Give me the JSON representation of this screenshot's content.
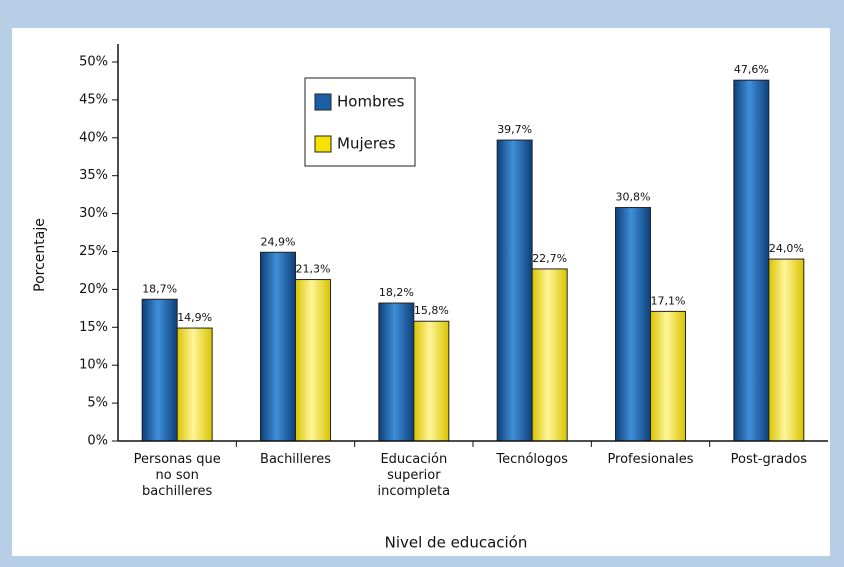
{
  "chart_data": {
    "type": "bar",
    "xlabel": "Nivel de educación",
    "ylabel": "Porcentaje",
    "categories": [
      "Personas que\nno son\nbachilleres",
      "Bachilleres",
      "Educación\nsuperior\nincompleta",
      "Tecnólogos",
      "Profesionales",
      "Post-grados"
    ],
    "series": [
      {
        "name": "Hombres",
        "color": "#1a5ea8",
        "values": [
          18.7,
          24.9,
          18.2,
          39.7,
          30.8,
          47.6
        ],
        "value_labels": [
          "18,7%",
          "24,9%",
          "18,2%",
          "39,7%",
          "30,8%",
          "47,6%"
        ]
      },
      {
        "name": "Mujeres",
        "color": "#f4e200",
        "values": [
          14.9,
          21.3,
          15.8,
          22.7,
          17.1,
          24.0
        ],
        "value_labels": [
          "14,9%",
          "21,3%",
          "15,8%",
          "22,7%",
          "17,1%",
          "24,0%"
        ]
      }
    ],
    "ylim": [
      0,
      50
    ],
    "yticks": [
      {
        "value": 0,
        "label": "0%"
      },
      {
        "value": 5,
        "label": "5%"
      },
      {
        "value": 10,
        "label": "10%"
      },
      {
        "value": 15,
        "label": "15%"
      },
      {
        "value": 20,
        "label": "20%"
      },
      {
        "value": 25,
        "label": "25%"
      },
      {
        "value": 30,
        "label": "30%"
      },
      {
        "value": 35,
        "label": "35%"
      },
      {
        "value": 40,
        "label": "40%"
      },
      {
        "value": 45,
        "label": "45%"
      },
      {
        "value": 50,
        "label": "50%"
      }
    ],
    "legend": "upper left"
  }
}
